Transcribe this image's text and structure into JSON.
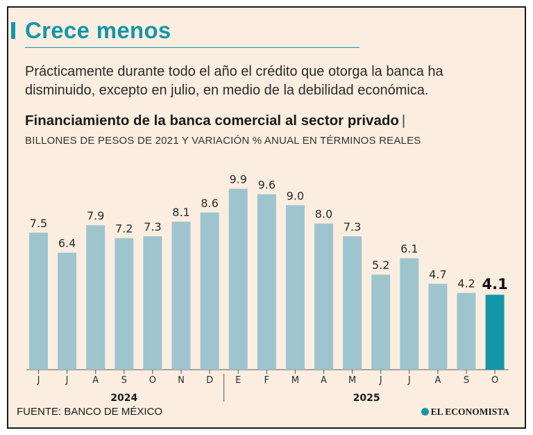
{
  "header": {
    "title": "Crece menos",
    "subtitle": "Prácticamente durante todo el año el crédito que otorga la banca ha disminuido, excepto en julio, en medio de la debilidad económica.",
    "chart_title": "Financiamiento de la banca comercial al sector privado",
    "chart_title_separator": "|",
    "chart_subtitle": "BILLONES DE PESOS DE 2021 Y VARIACIÓN % ANUAL EN TÉRMINOS REALES"
  },
  "footer": {
    "source": "FUENTE: BANCO DE MÉXICO",
    "brand": "EL ECONOMISTA"
  },
  "colors": {
    "accent": "#1596a8",
    "bar": "#9ec5ce",
    "bar_highlight": "#1596a8",
    "background": "#fbeee0"
  },
  "chart_data": {
    "type": "bar",
    "title": "Financiamiento de la banca comercial al sector privado",
    "subtitle": "BILLONES DE PESOS DE 2021 Y VARIACIÓN % ANUAL EN TÉRMINOS REALES",
    "categories": [
      "J",
      "J",
      "A",
      "S",
      "O",
      "N",
      "D",
      "E",
      "F",
      "M",
      "A",
      "M",
      "J",
      "J",
      "A",
      "S",
      "O"
    ],
    "values": [
      7.5,
      6.4,
      7.9,
      7.2,
      7.3,
      8.1,
      8.6,
      9.9,
      9.6,
      9.0,
      8.0,
      7.3,
      5.2,
      6.1,
      4.7,
      4.2,
      4.1
    ],
    "value_labels": [
      "7.5",
      "6.4",
      "7.9",
      "7.2",
      "7.3",
      "8.1",
      "8.6",
      "9.9",
      "9.6",
      "9.0",
      "8.0",
      "7.3",
      "5.2",
      "6.1",
      "4.7",
      "4.2",
      "4.1"
    ],
    "highlight_index": 16,
    "groups": [
      {
        "label": "2024",
        "start": 0,
        "end": 6
      },
      {
        "label": "2025",
        "start": 7,
        "end": 16
      }
    ],
    "ylim": [
      0,
      10
    ],
    "xlabel": "",
    "ylabel": "",
    "grid": false
  }
}
